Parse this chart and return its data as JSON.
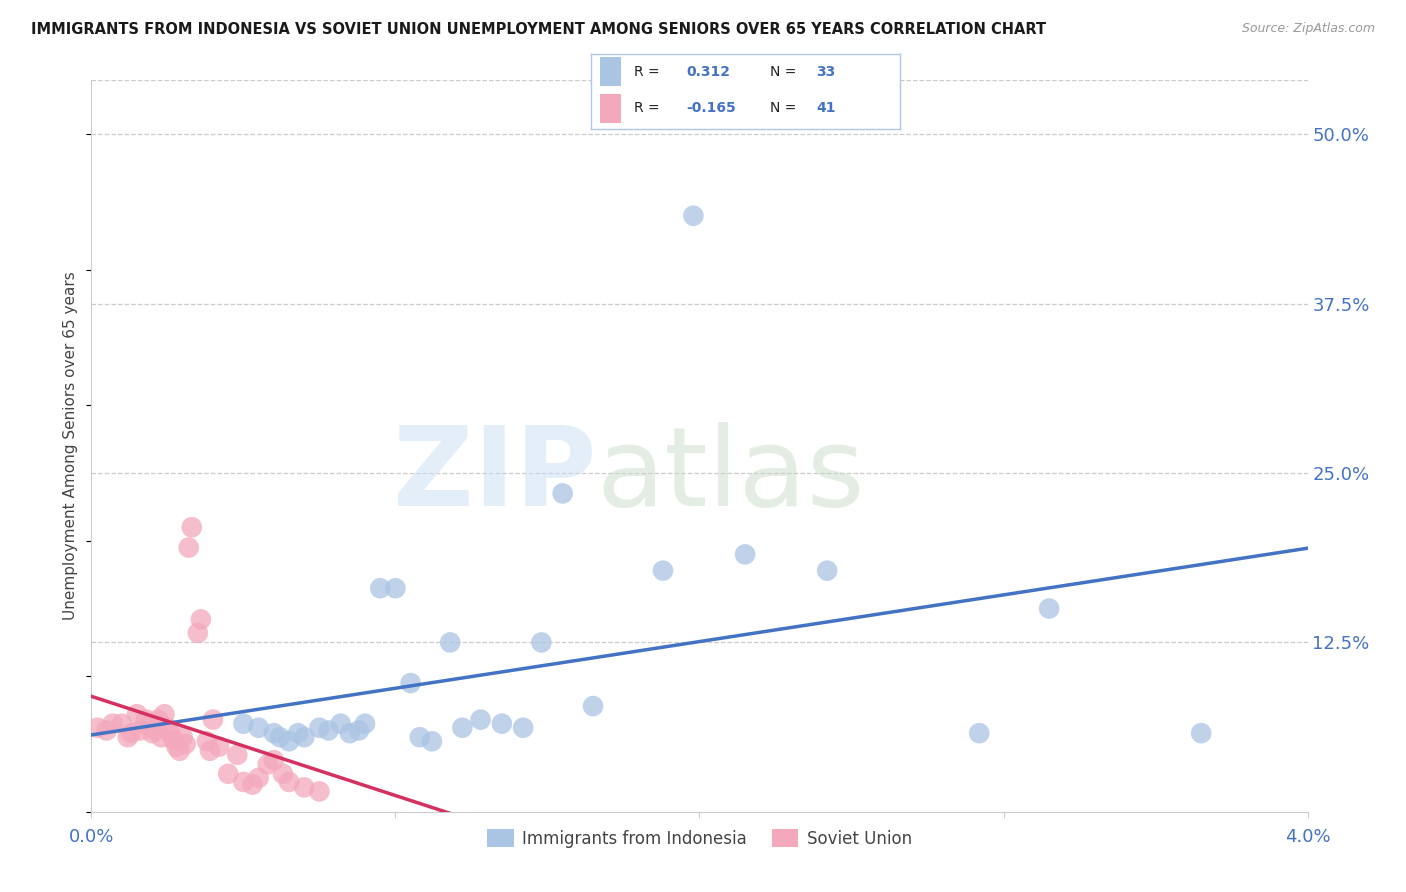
{
  "title": "IMMIGRANTS FROM INDONESIA VS SOVIET UNION UNEMPLOYMENT AMONG SENIORS OVER 65 YEARS CORRELATION CHART",
  "source": "Source: ZipAtlas.com",
  "ylabel": "Unemployment Among Seniors over 65 years",
  "yticks_labels": [
    "50.0%",
    "37.5%",
    "25.0%",
    "12.5%"
  ],
  "ytick_vals": [
    0.5,
    0.375,
    0.25,
    0.125
  ],
  "xlim": [
    0.0,
    0.04
  ],
  "ylim": [
    0.0,
    0.54
  ],
  "indonesia_R": "0.312",
  "indonesia_N": "33",
  "soviet_R": "-0.165",
  "soviet_N": "41",
  "indonesia_color": "#aac4e4",
  "soviet_color": "#f4a8bc",
  "indonesia_line_color": "#4472c4",
  "soviet_line_color": "#d63060",
  "legend_indonesia": "Immigrants from Indonesia",
  "legend_soviet": "Soviet Union",
  "title_color": "#1a1a1a",
  "source_color": "#999999",
  "axis_label_color": "#4472c4",
  "grid_color": "#cccccc",
  "indonesia_x": [
    0.005,
    0.0055,
    0.006,
    0.0062,
    0.0065,
    0.0068,
    0.007,
    0.0075,
    0.0078,
    0.0082,
    0.0085,
    0.0088,
    0.009,
    0.0095,
    0.01,
    0.0105,
    0.0108,
    0.0112,
    0.0118,
    0.0122,
    0.0128,
    0.0135,
    0.0142,
    0.0148,
    0.0155,
    0.0165,
    0.0188,
    0.0198,
    0.0215,
    0.0242,
    0.0292,
    0.0315,
    0.0365
  ],
  "indonesia_y": [
    0.065,
    0.062,
    0.058,
    0.055,
    0.052,
    0.058,
    0.055,
    0.062,
    0.06,
    0.065,
    0.058,
    0.06,
    0.065,
    0.165,
    0.165,
    0.095,
    0.055,
    0.052,
    0.125,
    0.062,
    0.068,
    0.065,
    0.062,
    0.125,
    0.235,
    0.078,
    0.178,
    0.44,
    0.19,
    0.178,
    0.058,
    0.15,
    0.058
  ],
  "soviet_x": [
    0.0002,
    0.0005,
    0.0007,
    0.001,
    0.0012,
    0.0013,
    0.0015,
    0.0016,
    0.0018,
    0.0019,
    0.002,
    0.0021,
    0.0022,
    0.0023,
    0.0024,
    0.0025,
    0.0026,
    0.0027,
    0.0028,
    0.0029,
    0.003,
    0.0031,
    0.0032,
    0.0033,
    0.0035,
    0.0036,
    0.0038,
    0.0039,
    0.004,
    0.0042,
    0.0045,
    0.0048,
    0.005,
    0.0053,
    0.0055,
    0.0058,
    0.006,
    0.0063,
    0.0065,
    0.007,
    0.0075
  ],
  "soviet_y": [
    0.062,
    0.06,
    0.065,
    0.065,
    0.055,
    0.058,
    0.072,
    0.06,
    0.068,
    0.063,
    0.058,
    0.06,
    0.068,
    0.055,
    0.072,
    0.062,
    0.058,
    0.053,
    0.048,
    0.045,
    0.055,
    0.05,
    0.195,
    0.21,
    0.132,
    0.142,
    0.052,
    0.045,
    0.068,
    0.048,
    0.028,
    0.042,
    0.022,
    0.02,
    0.025,
    0.035,
    0.038,
    0.028,
    0.022,
    0.018,
    0.015
  ]
}
